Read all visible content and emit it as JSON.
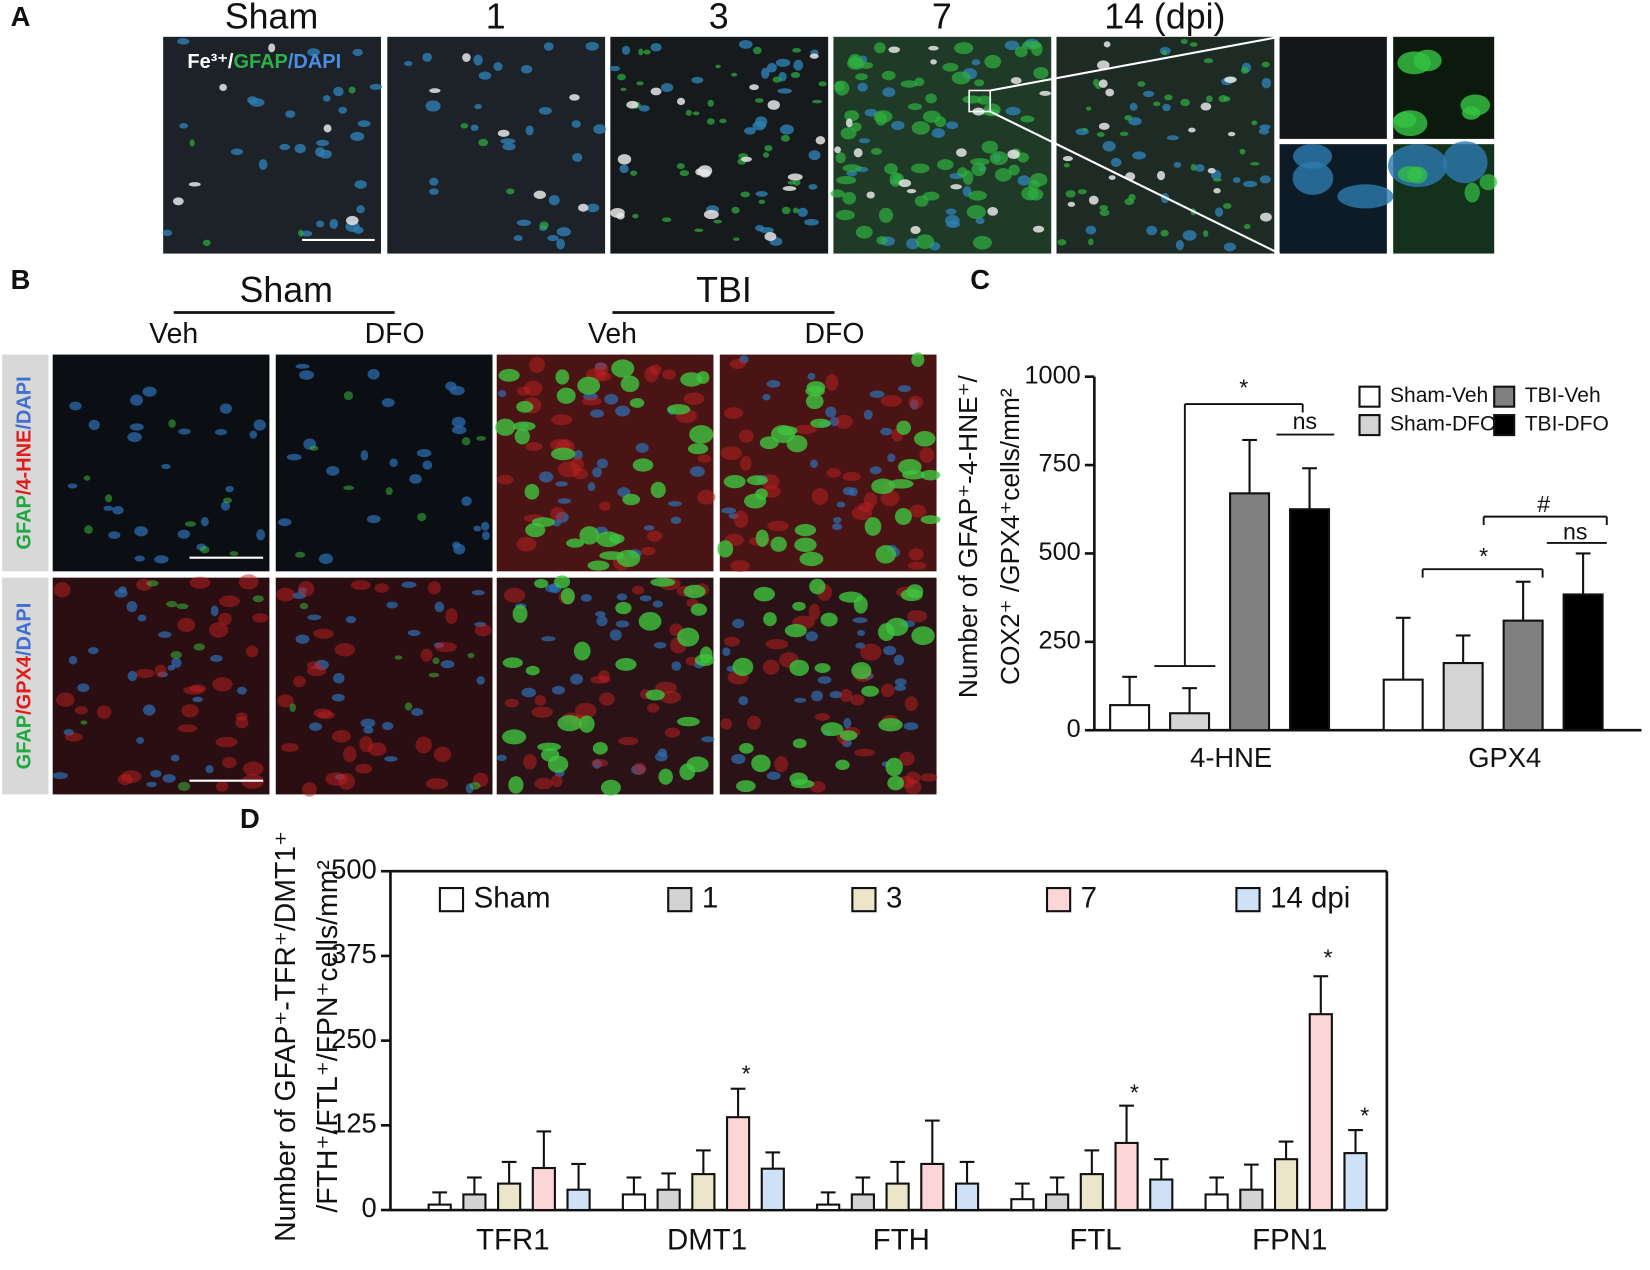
{
  "panels": {
    "a": {
      "label": "A",
      "columns": [
        "Sham",
        "1",
        "3",
        "7",
        "14 (dpi)"
      ],
      "stain": [
        "Fe³⁺/",
        "GFAP",
        "/DAPI"
      ]
    },
    "b": {
      "label": "B",
      "groups": [
        "Sham",
        "TBI"
      ],
      "columns": [
        "Veh",
        "DFO",
        "Veh",
        "DFO"
      ],
      "rows": [
        [
          "GFAP",
          "/4-HNE",
          "/DAPI"
        ],
        [
          "GFAP",
          "/GPX4",
          "/DAPI"
        ]
      ]
    }
  },
  "chart_data": [
    {
      "type": "bar",
      "label": "C",
      "ylabel": [
        "Number of GFAP⁺-4-HNE⁺/",
        "COX2⁺ /GPX4⁺cells/mm²"
      ],
      "categories": [
        "4-HNE",
        "GPX4"
      ],
      "series": [
        {
          "name": "Sham-Veh",
          "color": "#ffffff",
          "values": [
            71,
            143
          ],
          "errors": [
            80,
            175
          ]
        },
        {
          "name": "Sham-DFO",
          "color": "#d4d4d4",
          "values": [
            48,
            190
          ],
          "errors": [
            71,
            78
          ]
        },
        {
          "name": "TBI-Veh",
          "color": "#808080",
          "values": [
            670,
            310
          ],
          "errors": [
            151,
            110
          ]
        },
        {
          "name": "TBI-DFO",
          "color": "#000000",
          "values": [
            625,
            384
          ],
          "errors": [
            116,
            116
          ]
        }
      ],
      "ylim": [
        0,
        1000
      ],
      "yticks": [
        0,
        250,
        500,
        750,
        1000
      ],
      "grid": false,
      "annotations": [
        "*",
        "ns",
        "*",
        "#",
        "ns"
      ]
    },
    {
      "type": "bar",
      "label": "D",
      "ylabel": [
        "Number of GFAP⁺-TFR⁺/DMT1⁺",
        "/FTH⁺/FTL⁺/FPN⁺cells/mm²"
      ],
      "categories": [
        "TFR1",
        "DMT1",
        "FTH",
        "FTL",
        "FPN1"
      ],
      "series": [
        {
          "name": "Sham",
          "color": "#ffffff",
          "values": [
            8,
            23,
            8,
            16,
            23
          ],
          "errors": [
            18,
            25,
            18,
            23,
            25
          ]
        },
        {
          "name": "1",
          "color": "#d3d3d3",
          "values": [
            23,
            30,
            23,
            23,
            30
          ],
          "errors": [
            25,
            24,
            25,
            25,
            37
          ]
        },
        {
          "name": "3",
          "color": "#ebe6c9",
          "values": [
            39,
            53,
            39,
            53,
            75
          ],
          "errors": [
            32,
            35,
            32,
            35,
            26
          ]
        },
        {
          "name": "7",
          "color": "#fcd6d6",
          "values": [
            62,
            137,
            68,
            99,
            289
          ],
          "errors": [
            54,
            42,
            64,
            55,
            56
          ]
        },
        {
          "name": "14 dpi",
          "color": "#cfe1f7",
          "values": [
            30,
            61,
            39,
            45,
            84
          ],
          "errors": [
            38,
            24,
            32,
            30,
            34
          ]
        }
      ],
      "ylim": [
        0,
        500
      ],
      "yticks": [
        0,
        125,
        250,
        375,
        500
      ],
      "grid": false,
      "annotations": [
        "*",
        "*",
        "*",
        "*"
      ]
    }
  ]
}
